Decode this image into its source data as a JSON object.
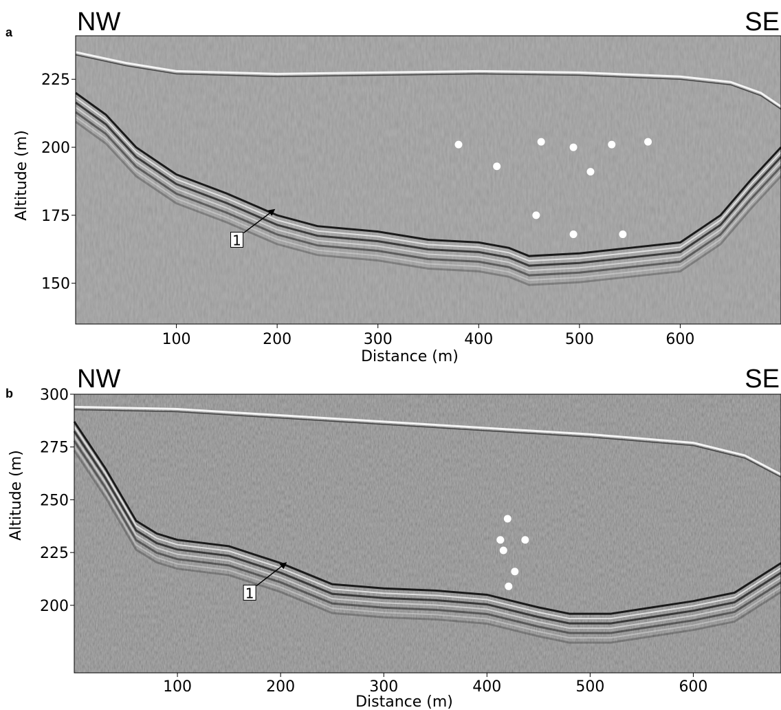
{
  "chart_data": [
    {
      "type": "scatter",
      "panel_label": "a",
      "left_direction": "NW",
      "right_direction": "SE",
      "xlabel": "Distance (m)",
      "ylabel": "Altitude (m)",
      "xlim": [
        0,
        700
      ],
      "ylim": [
        135,
        241
      ],
      "x_ticks": [
        100,
        200,
        300,
        400,
        500,
        600
      ],
      "y_ticks": [
        150,
        175,
        200,
        225
      ],
      "grid": false,
      "surface_profile": {
        "x": [
          0,
          50,
          100,
          200,
          300,
          400,
          500,
          600,
          650,
          680,
          700
        ],
        "y": [
          235,
          231,
          228,
          227,
          227.5,
          228,
          227.5,
          226,
          224,
          220,
          215
        ]
      },
      "bedrock_reflector": {
        "x": [
          0,
          30,
          60,
          100,
          150,
          200,
          240,
          300,
          350,
          400,
          430,
          450,
          500,
          550,
          600,
          640,
          670,
          700
        ],
        "y": [
          220,
          212,
          200,
          190,
          183,
          175,
          171,
          169,
          166,
          165,
          163,
          160,
          161,
          163,
          165,
          175,
          188,
          200
        ]
      },
      "diffraction_points": {
        "x": [
          380,
          418,
          462,
          494,
          532,
          568,
          511,
          457,
          494,
          543
        ],
        "y": [
          201,
          193,
          202,
          200,
          201,
          202,
          191,
          175,
          168,
          168
        ]
      },
      "annotations": [
        {
          "text": "1",
          "x": 160,
          "y": 166,
          "arrow_to_x": 197,
          "arrow_to_y": 177
        }
      ]
    },
    {
      "type": "scatter",
      "panel_label": "b",
      "left_direction": "NW",
      "right_direction": "SE",
      "xlabel": "Distance (m)",
      "ylabel": "Altitude (m)",
      "xlim": [
        0,
        685
      ],
      "ylim": [
        168,
        300
      ],
      "x_ticks": [
        100,
        200,
        300,
        400,
        500,
        600
      ],
      "y_ticks": [
        200,
        225,
        250,
        275,
        300
      ],
      "grid": false,
      "surface_profile": {
        "x": [
          0,
          100,
          200,
          300,
          400,
          500,
          600,
          650,
          685
        ],
        "y": [
          294,
          293,
          290,
          287,
          284,
          281,
          277,
          271,
          262
        ]
      },
      "bedrock_reflector": {
        "x": [
          0,
          30,
          60,
          80,
          100,
          150,
          200,
          250,
          300,
          350,
          400,
          450,
          480,
          520,
          560,
          600,
          640,
          685
        ],
        "y": [
          287,
          265,
          240,
          234,
          231,
          228,
          220,
          210,
          208,
          207,
          205,
          199,
          196,
          196,
          199,
          202,
          206,
          220
        ]
      },
      "diffraction_points": {
        "x": [
          420,
          413,
          437,
          416,
          427,
          421
        ],
        "y": [
          241,
          231,
          231,
          226,
          216,
          209
        ]
      },
      "annotations": [
        {
          "text": "1",
          "x": 170,
          "y": 206,
          "arrow_to_x": 205,
          "arrow_to_y": 220
        }
      ]
    }
  ]
}
